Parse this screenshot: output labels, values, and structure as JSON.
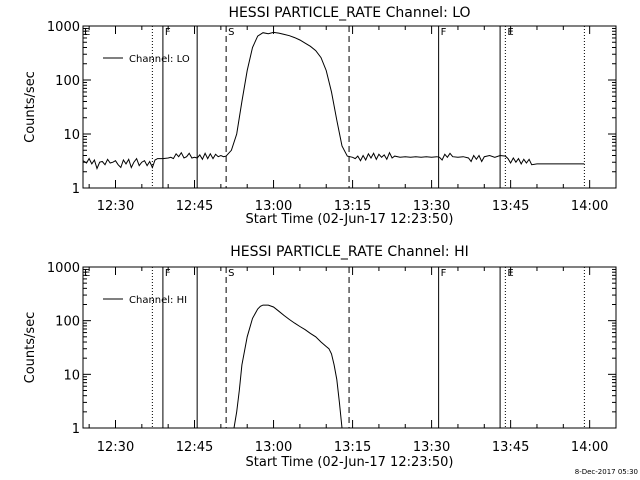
{
  "chart_data": [
    {
      "type": "line",
      "title": "HESSI PARTICLE_RATE Channel: LO",
      "xlabel": "Start Time (02-Jun-17 12:23:50)",
      "ylabel": "Counts/sec",
      "y_scale": "log",
      "ylim": [
        1,
        1000
      ],
      "xlim": [
        "12:23:50",
        "14:05:00"
      ],
      "x_ticks": [
        "12:30",
        "12:45",
        "13:00",
        "13:15",
        "13:30",
        "13:45",
        "14:00"
      ],
      "y_ticks": [
        "1",
        "10",
        "100",
        "1000"
      ],
      "legend": "Channel: LO",
      "legend_position": "top-left",
      "marker_lines": [
        {
          "time": "12:37:00",
          "style": "dotted",
          "label": ""
        },
        {
          "time": "12:39:00",
          "style": "solid",
          "label": "F"
        },
        {
          "time": "12:45:30",
          "style": "solid",
          "label": ""
        },
        {
          "time": "12:51:00",
          "style": "dashed",
          "label": "S"
        },
        {
          "time": "13:14:20",
          "style": "dashed",
          "label": ""
        },
        {
          "time": "13:31:20",
          "style": "solid",
          "label": "F"
        },
        {
          "time": "13:43:00",
          "style": "solid",
          "label": ""
        },
        {
          "time": "13:44:00",
          "style": "dotted",
          "label": "E"
        },
        {
          "time": "13:59:00",
          "style": "dotted",
          "label": ""
        }
      ],
      "corner_label": "E",
      "series": [
        {
          "name": "Channel: LO",
          "points": [
            [
              "12:23:50",
              3.2
            ],
            [
              "12:24:30",
              2.9
            ],
            [
              "12:25:00",
              3.5
            ],
            [
              "12:25:30",
              2.8
            ],
            [
              "12:26:00",
              3.3
            ],
            [
              "12:26:30",
              2.3
            ],
            [
              "12:27:00",
              3.0
            ],
            [
              "12:27:30",
              3.1
            ],
            [
              "12:28:00",
              2.7
            ],
            [
              "12:28:30",
              3.4
            ],
            [
              "12:29:00",
              2.9
            ],
            [
              "12:29:30",
              3.0
            ],
            [
              "12:30:00",
              3.2
            ],
            [
              "12:30:30",
              2.7
            ],
            [
              "12:31:00",
              2.4
            ],
            [
              "12:31:30",
              3.3
            ],
            [
              "12:32:00",
              2.8
            ],
            [
              "12:32:30",
              3.4
            ],
            [
              "12:33:00",
              2.4
            ],
            [
              "12:33:30",
              3.0
            ],
            [
              "12:34:00",
              3.5
            ],
            [
              "12:34:30",
              2.6
            ],
            [
              "12:35:00",
              3.0
            ],
            [
              "12:35:30",
              3.2
            ],
            [
              "12:36:00",
              2.6
            ],
            [
              "12:36:30",
              3.1
            ],
            [
              "12:37:00",
              2.4
            ],
            [
              "12:37:30",
              3.3
            ],
            [
              "12:38:00",
              3.5
            ],
            [
              "12:39:00",
              3.5
            ],
            [
              "12:40:00",
              3.6
            ],
            [
              "12:40:30",
              3.7
            ],
            [
              "12:41:00",
              3.5
            ],
            [
              "12:41:30",
              4.3
            ],
            [
              "12:42:00",
              3.8
            ],
            [
              "12:42:30",
              4.5
            ],
            [
              "12:43:00",
              3.6
            ],
            [
              "12:43:30",
              3.8
            ],
            [
              "12:44:00",
              4.4
            ],
            [
              "12:44:30",
              3.6
            ],
            [
              "12:45:00",
              3.7
            ],
            [
              "12:45:30",
              3.6
            ],
            [
              "12:46:00",
              4.1
            ],
            [
              "12:46:30",
              3.4
            ],
            [
              "12:47:00",
              4.4
            ],
            [
              "12:47:30",
              3.5
            ],
            [
              "12:48:00",
              4.3
            ],
            [
              "12:48:30",
              3.5
            ],
            [
              "12:49:00",
              4.2
            ],
            [
              "12:49:30",
              3.8
            ],
            [
              "12:50:00",
              4.0
            ],
            [
              "12:50:30",
              3.8
            ],
            [
              "12:51:00",
              3.9
            ],
            [
              "12:52:00",
              5.0
            ],
            [
              "12:53:00",
              10
            ],
            [
              "12:54:00",
              40
            ],
            [
              "12:55:00",
              150
            ],
            [
              "12:56:00",
              400
            ],
            [
              "12:57:00",
              650
            ],
            [
              "12:58:00",
              750
            ],
            [
              "12:59:00",
              720
            ],
            [
              "13:00:00",
              760
            ],
            [
              "13:01:00",
              740
            ],
            [
              "13:02:00",
              700
            ],
            [
              "13:03:00",
              660
            ],
            [
              "13:04:00",
              610
            ],
            [
              "13:05:00",
              550
            ],
            [
              "13:06:00",
              480
            ],
            [
              "13:07:00",
              420
            ],
            [
              "13:08:00",
              350
            ],
            [
              "13:09:00",
              260
            ],
            [
              "13:10:00",
              150
            ],
            [
              "13:11:00",
              60
            ],
            [
              "13:12:00",
              18
            ],
            [
              "13:13:00",
              6
            ],
            [
              "13:14:00",
              3.9
            ],
            [
              "13:15:00",
              3.7
            ],
            [
              "13:15:30",
              3.5
            ],
            [
              "13:16:00",
              3.9
            ],
            [
              "13:16:30",
              3.2
            ],
            [
              "13:17:00",
              4.0
            ],
            [
              "13:17:30",
              3.3
            ],
            [
              "13:18:00",
              4.3
            ],
            [
              "13:18:30",
              3.6
            ],
            [
              "13:19:00",
              4.4
            ],
            [
              "13:19:30",
              3.4
            ],
            [
              "13:20:00",
              4.2
            ],
            [
              "13:20:30",
              3.7
            ],
            [
              "13:21:00",
              4.1
            ],
            [
              "13:21:30",
              3.4
            ],
            [
              "13:22:00",
              4.5
            ],
            [
              "13:22:30",
              3.6
            ],
            [
              "13:23:00",
              3.9
            ],
            [
              "13:24:00",
              3.7
            ],
            [
              "13:25:00",
              3.8
            ],
            [
              "13:26:00",
              3.7
            ],
            [
              "13:27:00",
              3.8
            ],
            [
              "13:28:00",
              3.7
            ],
            [
              "13:29:00",
              3.8
            ],
            [
              "13:30:00",
              3.7
            ],
            [
              "13:31:00",
              3.8
            ],
            [
              "13:31:30",
              3.7
            ],
            [
              "13:32:00",
              3.3
            ],
            [
              "13:32:30",
              4.2
            ],
            [
              "13:33:00",
              3.7
            ],
            [
              "13:33:30",
              4.4
            ],
            [
              "13:34:00",
              3.8
            ],
            [
              "13:35:00",
              3.7
            ],
            [
              "13:36:00",
              3.8
            ],
            [
              "13:37:00",
              3.6
            ],
            [
              "13:37:30",
              3.1
            ],
            [
              "13:38:00",
              4.0
            ],
            [
              "13:38:30",
              3.4
            ],
            [
              "13:39:00",
              4.0
            ],
            [
              "13:39:30",
              3.1
            ],
            [
              "13:40:00",
              3.8
            ],
            [
              "13:41:00",
              4.0
            ],
            [
              "13:42:00",
              3.7
            ],
            [
              "13:43:00",
              4.0
            ],
            [
              "13:44:00",
              3.9
            ],
            [
              "13:44:30",
              3.5
            ],
            [
              "13:45:00",
              2.9
            ],
            [
              "13:45:30",
              3.6
            ],
            [
              "13:46:00",
              3.0
            ],
            [
              "13:46:30",
              3.5
            ],
            [
              "13:47:00",
              2.8
            ],
            [
              "13:47:30",
              3.4
            ],
            [
              "13:48:00",
              2.9
            ],
            [
              "13:48:30",
              3.4
            ],
            [
              "13:49:00",
              2.7
            ],
            [
              "13:50:00",
              2.8
            ],
            [
              "13:52:00",
              2.8
            ],
            [
              "13:54:00",
              2.8
            ],
            [
              "13:56:00",
              2.8
            ],
            [
              "13:58:00",
              2.8
            ],
            [
              "13:59:00",
              2.8
            ]
          ]
        }
      ]
    },
    {
      "type": "line",
      "title": "HESSI PARTICLE_RATE Channel: HI",
      "xlabel": "Start Time (02-Jun-17 12:23:50)",
      "ylabel": "Counts/sec",
      "y_scale": "log",
      "ylim": [
        1,
        1000
      ],
      "xlim": [
        "12:23:50",
        "14:05:00"
      ],
      "x_ticks": [
        "12:30",
        "12:45",
        "13:00",
        "13:15",
        "13:30",
        "13:45",
        "14:00"
      ],
      "y_ticks": [
        "1",
        "10",
        "100",
        "1000"
      ],
      "legend": "Channel: HI",
      "legend_position": "top-left",
      "marker_lines": [
        {
          "time": "12:37:00",
          "style": "dotted",
          "label": ""
        },
        {
          "time": "12:39:00",
          "style": "solid",
          "label": "F"
        },
        {
          "time": "12:45:30",
          "style": "solid",
          "label": ""
        },
        {
          "time": "12:51:00",
          "style": "dashed",
          "label": "S"
        },
        {
          "time": "13:14:20",
          "style": "dashed",
          "label": ""
        },
        {
          "time": "13:31:20",
          "style": "solid",
          "label": "F"
        },
        {
          "time": "13:43:00",
          "style": "solid",
          "label": ""
        },
        {
          "time": "13:44:00",
          "style": "dotted",
          "label": "E"
        },
        {
          "time": "13:59:00",
          "style": "dotted",
          "label": ""
        }
      ],
      "corner_label": "E",
      "series": [
        {
          "name": "Channel: HI",
          "points": [
            [
              "12:52:30",
              1.0
            ],
            [
              "12:53:00",
              2
            ],
            [
              "12:53:30",
              5
            ],
            [
              "12:54:00",
              15
            ],
            [
              "12:55:00",
              50
            ],
            [
              "12:56:00",
              110
            ],
            [
              "12:57:00",
              165
            ],
            [
              "12:57:30",
              185
            ],
            [
              "12:58:00",
              195
            ],
            [
              "12:59:00",
              195
            ],
            [
              "13:00:00",
              180
            ],
            [
              "13:01:00",
              150
            ],
            [
              "13:02:00",
              125
            ],
            [
              "13:03:00",
              105
            ],
            [
              "13:04:00",
              90
            ],
            [
              "13:05:00",
              78
            ],
            [
              "13:06:00",
              68
            ],
            [
              "13:07:00",
              58
            ],
            [
              "13:08:00",
              50
            ],
            [
              "13:09:00",
              40
            ],
            [
              "13:10:00",
              33
            ],
            [
              "13:10:30",
              30
            ],
            [
              "13:11:00",
              24
            ],
            [
              "13:11:30",
              15
            ],
            [
              "13:12:00",
              8
            ],
            [
              "13:12:30",
              3
            ],
            [
              "13:13:00",
              1.0
            ]
          ]
        }
      ]
    }
  ],
  "footer": {
    "timestamp": "8-Dec-2017 05:30"
  }
}
